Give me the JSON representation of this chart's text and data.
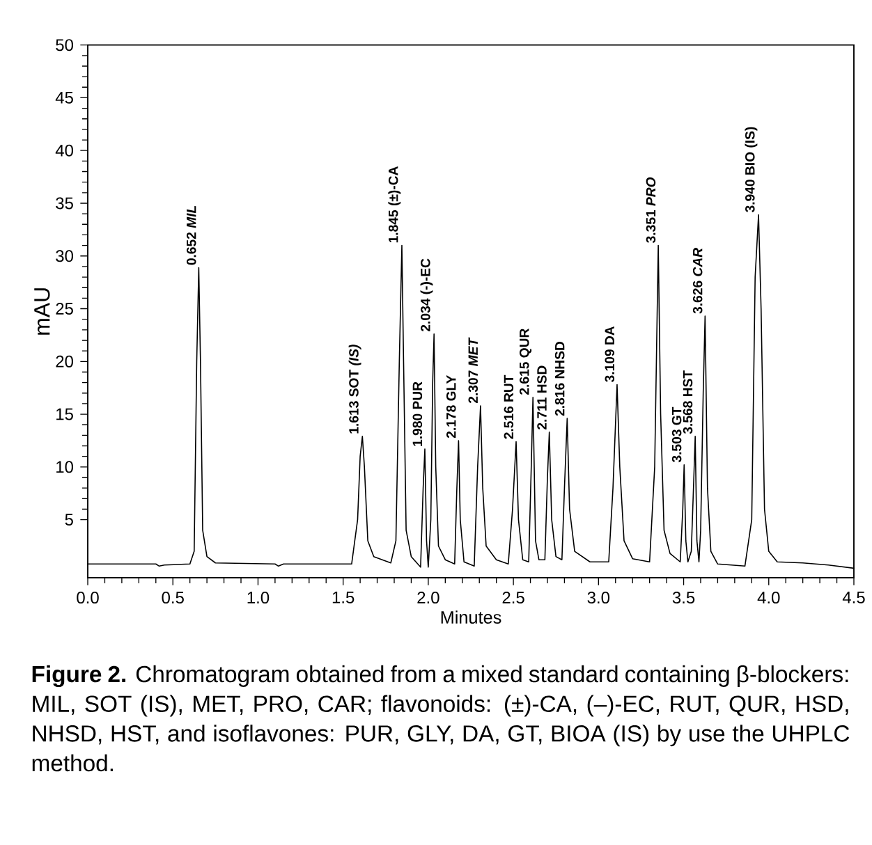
{
  "chart_data": {
    "type": "line",
    "xlabel": "Minutes",
    "ylabel": "mAU",
    "xlim": [
      0,
      4.5
    ],
    "ylim": [
      -0.5,
      50
    ],
    "xticks": [
      {
        "value": 0,
        "label": "0.0"
      },
      {
        "value": 0.5,
        "label": "0.5"
      },
      {
        "value": 1,
        "label": "1.0"
      },
      {
        "value": 1.5,
        "label": "1.5"
      },
      {
        "value": 2,
        "label": "2.0"
      },
      {
        "value": 2.5,
        "label": "2.5"
      },
      {
        "value": 3,
        "label": "3.0"
      },
      {
        "value": 3.5,
        "label": "3.5"
      },
      {
        "value": 4,
        "label": "4.0"
      },
      {
        "value": 4.5,
        "label": "4.5"
      }
    ],
    "yticks": [
      5,
      10,
      15,
      20,
      25,
      30,
      35,
      40,
      45,
      50
    ],
    "x": [
      0,
      0.4,
      0.42,
      0.45,
      0.6,
      0.625,
      0.64,
      0.652,
      0.662,
      0.675,
      0.7,
      0.75,
      1.1,
      1.12,
      1.15,
      1.55,
      1.585,
      1.6,
      1.613,
      1.625,
      1.645,
      1.68,
      1.78,
      1.81,
      1.83,
      1.845,
      1.855,
      1.87,
      1.9,
      1.955,
      1.97,
      1.98,
      1.99,
      2.0,
      2.015,
      2.026,
      2.034,
      2.044,
      2.06,
      2.1,
      2.155,
      2.168,
      2.178,
      2.188,
      2.21,
      2.27,
      2.29,
      2.307,
      2.32,
      2.34,
      2.4,
      2.47,
      2.495,
      2.516,
      2.53,
      2.555,
      2.59,
      2.605,
      2.615,
      2.63,
      2.65,
      2.685,
      2.7,
      2.711,
      2.725,
      2.75,
      2.785,
      2.8,
      2.816,
      2.83,
      2.86,
      2.95,
      3.06,
      3.085,
      3.109,
      3.125,
      3.15,
      3.2,
      3.3,
      3.33,
      3.351,
      3.365,
      3.385,
      3.42,
      3.48,
      3.495,
      3.503,
      3.513,
      3.525,
      3.545,
      3.56,
      3.568,
      3.578,
      3.59,
      3.6,
      3.615,
      3.626,
      3.64,
      3.66,
      3.7,
      3.86,
      3.9,
      3.92,
      3.94,
      3.955,
      3.975,
      4.0,
      4.05,
      4.2,
      4.35,
      4.5
    ],
    "series": [
      {
        "color": "#000000",
        "values": [
          0.8,
          0.8,
          0.6,
          0.7,
          0.8,
          2,
          20,
          28.9,
          20,
          4,
          1.5,
          0.9,
          0.8,
          0.6,
          0.8,
          0.8,
          5,
          11,
          12.9,
          10,
          3,
          1.5,
          0.9,
          3,
          20,
          31.0,
          20,
          4,
          1.5,
          0.5,
          8,
          11.7,
          3,
          0.5,
          5,
          18,
          22.6,
          10,
          2.5,
          1.2,
          0.8,
          8,
          12.5,
          5,
          1.0,
          0.6,
          10,
          15.8,
          8,
          2.5,
          1.2,
          0.8,
          6,
          12.4,
          5,
          1.2,
          1,
          10,
          16.6,
          3,
          1.2,
          1.2,
          9,
          13.3,
          5,
          1.5,
          1.2,
          8,
          14.6,
          6,
          2,
          1.0,
          1.0,
          8,
          17.8,
          10,
          3,
          1.3,
          1.0,
          10,
          31.0,
          15,
          4,
          1.8,
          1.0,
          6,
          10.2,
          3,
          1.0,
          2,
          9,
          12.9,
          3,
          1,
          4,
          17,
          24.3,
          8,
          2,
          0.8,
          0.6,
          5,
          28,
          33.9,
          25,
          6,
          2,
          1.0,
          0.9,
          0.7,
          0.4
        ]
      }
    ],
    "annotations": [
      {
        "text": "0.652 *MIL*",
        "x": 0.652,
        "y": 28.9
      },
      {
        "text": "1.613 SOT *(IS)*",
        "x": 1.613,
        "y": 12.9
      },
      {
        "text": "1.845 (±)-CA",
        "x": 1.845,
        "y": 31.0
      },
      {
        "text": "1.980 PUR",
        "x": 1.98,
        "y": 11.7
      },
      {
        "text": "2.034 (-)-EC",
        "x": 2.034,
        "y": 22.6
      },
      {
        "text": "2.178 GLY",
        "x": 2.178,
        "y": 12.5
      },
      {
        "text": "2.307 *MET*",
        "x": 2.307,
        "y": 15.8
      },
      {
        "text": "2.516 RUT",
        "x": 2.516,
        "y": 12.4
      },
      {
        "text": "2.615 QUR",
        "x": 2.615,
        "y": 16.6
      },
      {
        "text": "2.711 HSD",
        "x": 2.711,
        "y": 13.3
      },
      {
        "text": "2.816 NHSD",
        "x": 2.816,
        "y": 14.6
      },
      {
        "text": "3.109 DA",
        "x": 3.109,
        "y": 17.8
      },
      {
        "text": "3.351 *PRO*",
        "x": 3.351,
        "y": 31.0
      },
      {
        "text": "3.503 GT",
        "x": 3.503,
        "y": 10.2
      },
      {
        "text": "3.568 HST",
        "x": 3.568,
        "y": 12.9
      },
      {
        "text": "3.626 *CAR*",
        "x": 3.626,
        "y": 24.3
      },
      {
        "text": "3.940 BIO (IS)",
        "x": 3.94,
        "y": 33.9
      },
      "**Figure 2.** Chromatogram obtained from a mixed standard containing β-blockers: MIL, SOT (IS), MET, PRO, CAR; flavonoids: (±)-CA, (–)-EC, RUT, QUR, HSD, NHSD, HST, and isoflavones: PUR, GLY, DA, GT, BIOA (IS) by use the UHPLC method."
    ]
  }
}
